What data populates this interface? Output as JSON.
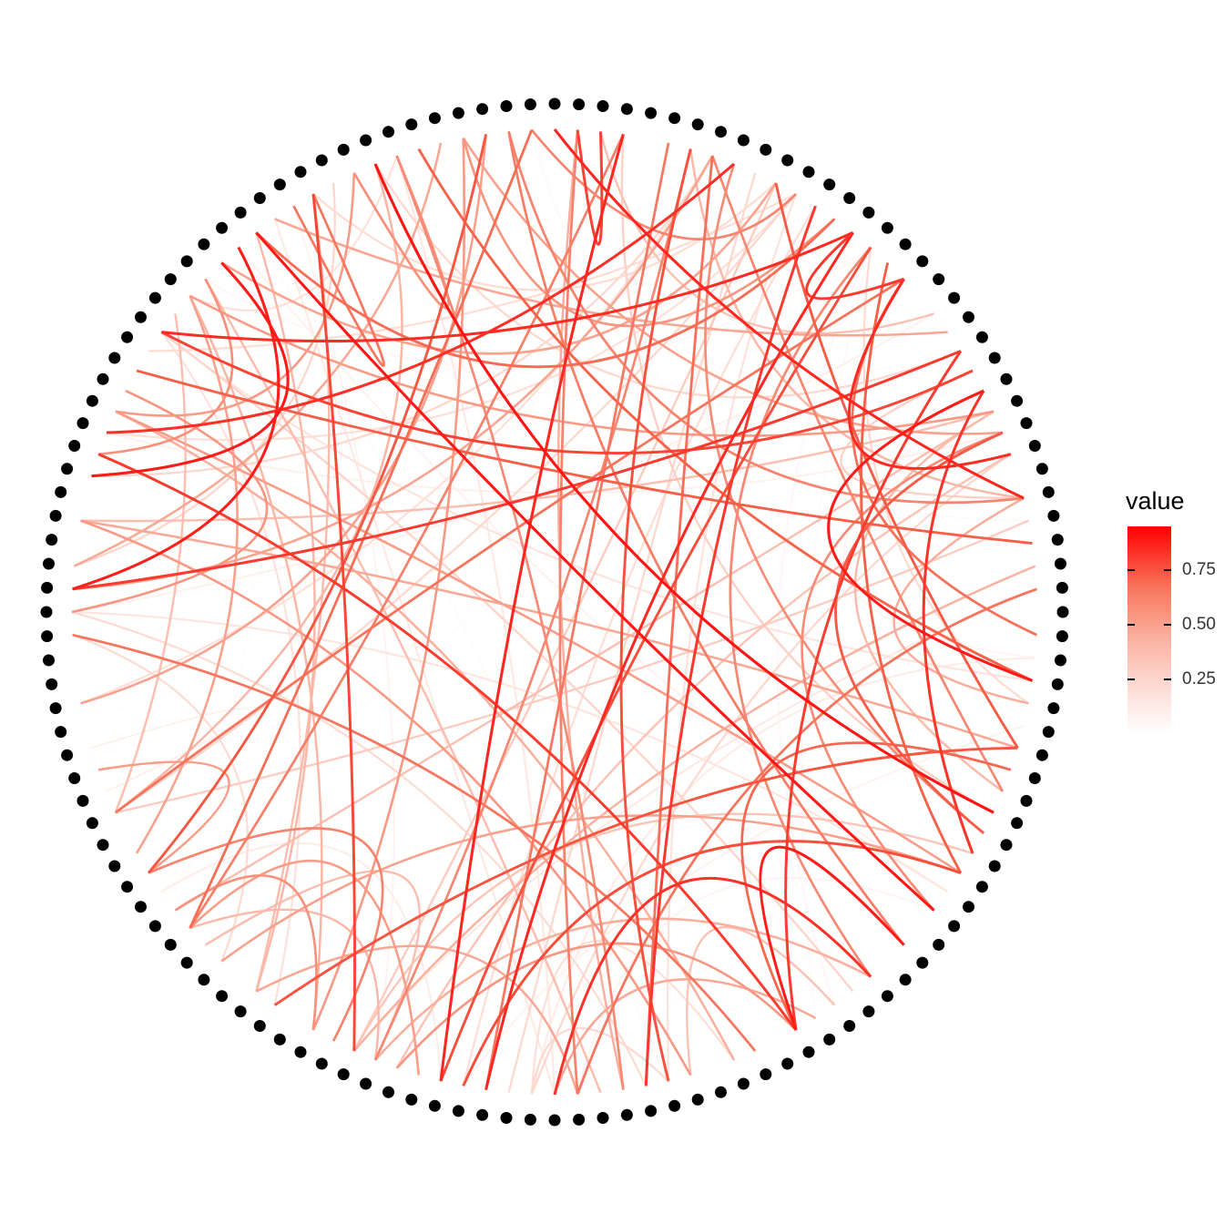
{
  "chart_data": {
    "type": "network",
    "layout": "circle",
    "node_count": 132,
    "node_color": "#000000",
    "edge_color_scale": {
      "low": "#ffffff",
      "high": "#ff0000"
    },
    "legend": {
      "title": "value",
      "labels": [
        "0.25",
        "0.50",
        "0.75"
      ],
      "values": [
        0.25,
        0.5,
        0.75
      ],
      "range": [
        0.0,
        0.95
      ],
      "placement": "right"
    },
    "edge_count": 150,
    "edge_seed": 20240611
  }
}
